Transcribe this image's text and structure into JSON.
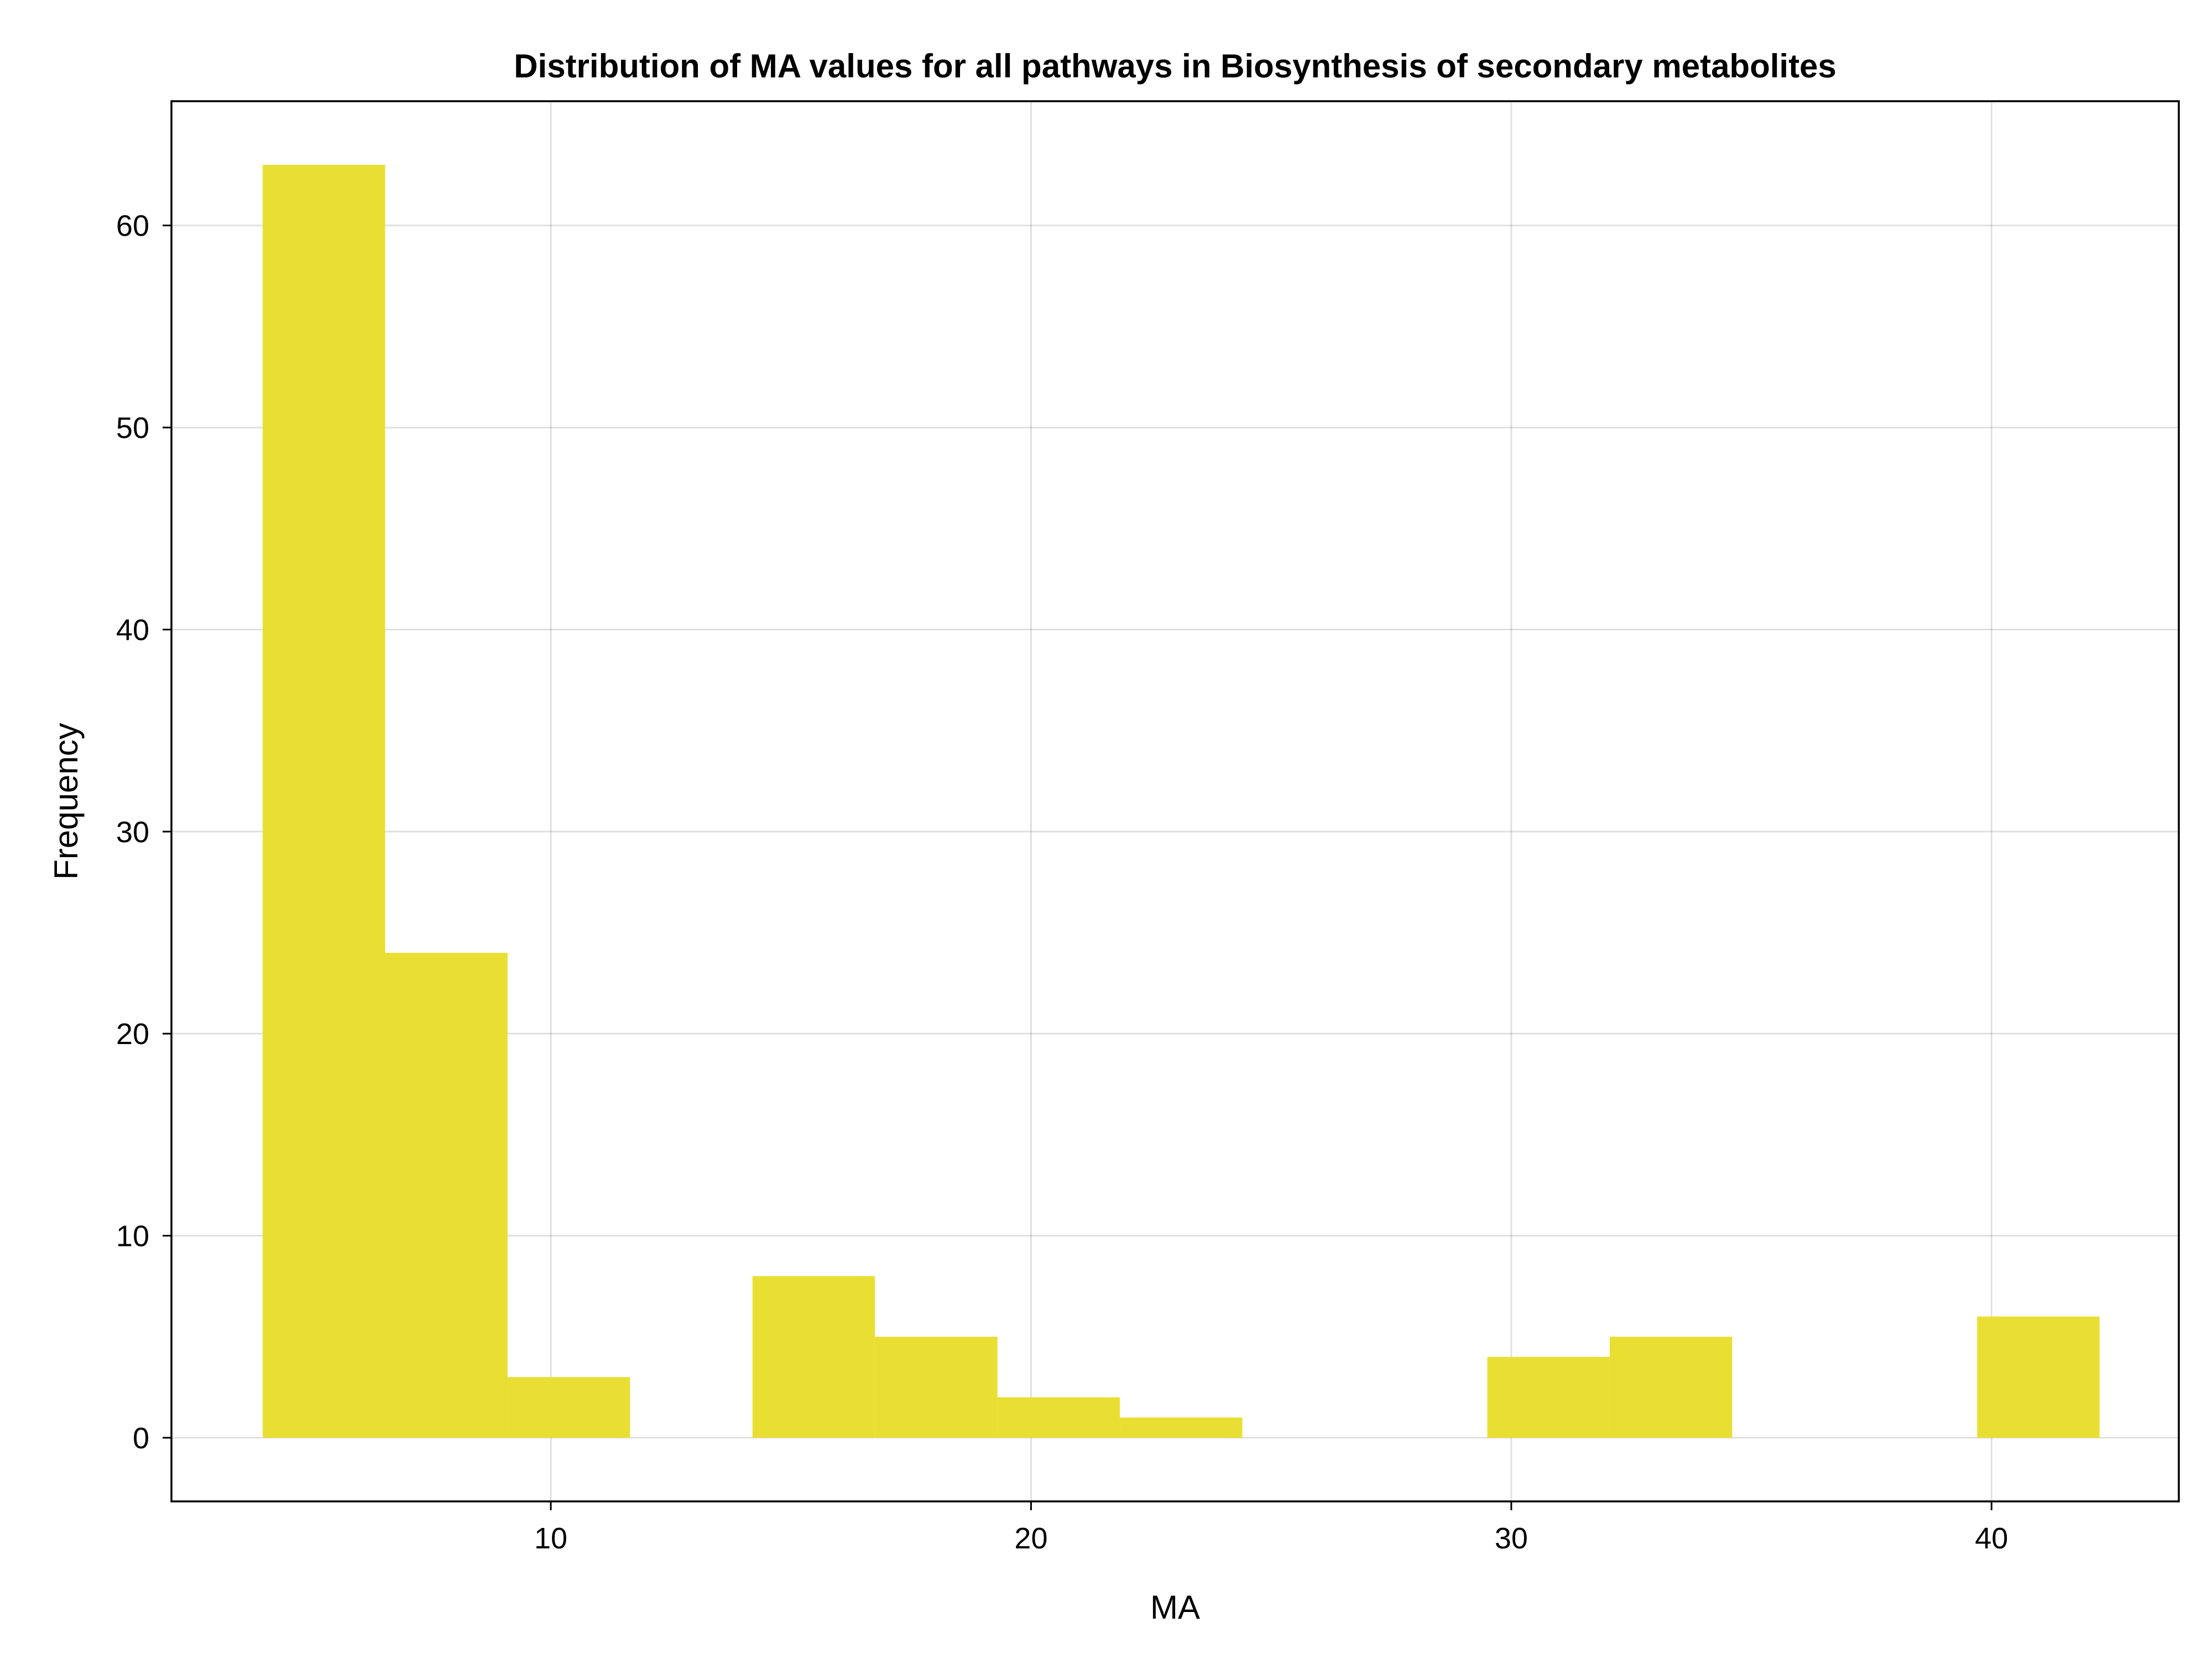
{
  "chart_data": {
    "type": "bar",
    "title": "Distribution of MA values for all pathways in Biosynthesis of secondary metabolites",
    "xlabel": "MA",
    "ylabel": "Frequency",
    "xlim": [
      2.1,
      43.9
    ],
    "ylim": [
      -3.15,
      66.15
    ],
    "xticks": [
      10,
      20,
      30,
      40
    ],
    "yticks": [
      0,
      10,
      20,
      30,
      40,
      50,
      60
    ],
    "grid": true,
    "legend": "none",
    "bar_color": "#e9df32",
    "bins": [
      {
        "x0": 4.0,
        "x1": 6.55,
        "count": 63
      },
      {
        "x0": 6.55,
        "x1": 9.1,
        "count": 24
      },
      {
        "x0": 9.1,
        "x1": 11.65,
        "count": 3
      },
      {
        "x0": 11.65,
        "x1": 14.2,
        "count": 0
      },
      {
        "x0": 14.2,
        "x1": 16.75,
        "count": 8
      },
      {
        "x0": 16.75,
        "x1": 19.3,
        "count": 5
      },
      {
        "x0": 19.3,
        "x1": 21.85,
        "count": 2
      },
      {
        "x0": 21.85,
        "x1": 24.4,
        "count": 1
      },
      {
        "x0": 24.4,
        "x1": 26.95,
        "count": 0
      },
      {
        "x0": 26.95,
        "x1": 29.5,
        "count": 0
      },
      {
        "x0": 29.5,
        "x1": 32.05,
        "count": 4
      },
      {
        "x0": 32.05,
        "x1": 34.6,
        "count": 5
      },
      {
        "x0": 34.6,
        "x1": 37.15,
        "count": 0
      },
      {
        "x0": 37.15,
        "x1": 39.7,
        "count": 0
      },
      {
        "x0": 39.7,
        "x1": 42.25,
        "count": 6
      }
    ]
  }
}
